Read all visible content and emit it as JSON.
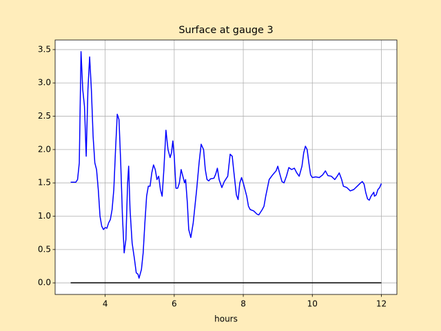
{
  "chart_data": {
    "type": "line",
    "title": "Surface at gauge 3",
    "xlabel": "hours",
    "series": [
      {
        "color": "#0000ff",
        "x": [
          3.0,
          3.15,
          3.2,
          3.25,
          3.3,
          3.35,
          3.4,
          3.45,
          3.5,
          3.55,
          3.6,
          3.65,
          3.7,
          3.75,
          3.8,
          3.85,
          3.9,
          3.95,
          4.0,
          4.05,
          4.1,
          4.15,
          4.2,
          4.25,
          4.3,
          4.35,
          4.4,
          4.45,
          4.5,
          4.55,
          4.6,
          4.65,
          4.68,
          4.72,
          4.78,
          4.85,
          4.9,
          4.95,
          4.98,
          5.05,
          5.1,
          5.15,
          5.2,
          5.25,
          5.3,
          5.35,
          5.4,
          5.45,
          5.5,
          5.55,
          5.6,
          5.65,
          5.7,
          5.76,
          5.82,
          5.88,
          5.92,
          5.96,
          6.0,
          6.05,
          6.1,
          6.15,
          6.2,
          6.25,
          6.3,
          6.33,
          6.38,
          6.42,
          6.48,
          6.55,
          6.65,
          6.72,
          6.78,
          6.85,
          6.9,
          6.95,
          7.0,
          7.05,
          7.15,
          7.2,
          7.25,
          7.3,
          7.38,
          7.45,
          7.55,
          7.62,
          7.68,
          7.72,
          7.8,
          7.85,
          7.9,
          7.95,
          8.0,
          8.05,
          8.1,
          8.15,
          8.2,
          8.3,
          8.4,
          8.45,
          8.55,
          8.6,
          8.65,
          8.75,
          8.85,
          8.95,
          9.0,
          9.05,
          9.12,
          9.18,
          9.25,
          9.32,
          9.4,
          9.48,
          9.55,
          9.62,
          9.7,
          9.75,
          9.8,
          9.85,
          9.9,
          9.95,
          10.0,
          10.1,
          10.2,
          10.3,
          10.38,
          10.45,
          10.55,
          10.65,
          10.72,
          10.78,
          10.85,
          10.9,
          11.0,
          11.1,
          11.2,
          11.3,
          11.4,
          11.45,
          11.5,
          11.55,
          11.6,
          11.65,
          11.7,
          11.78,
          11.8,
          11.85,
          11.9,
          11.95,
          12.0
        ],
        "values": [
          1.51,
          1.51,
          1.55,
          1.8,
          3.47,
          2.9,
          2.65,
          1.9,
          2.9,
          3.39,
          2.9,
          2.2,
          1.8,
          1.7,
          1.4,
          1.0,
          0.85,
          0.8,
          0.83,
          0.82,
          0.9,
          0.95,
          1.1,
          1.4,
          2.0,
          2.53,
          2.45,
          1.8,
          1.0,
          0.45,
          0.65,
          1.5,
          1.75,
          1.1,
          0.6,
          0.35,
          0.15,
          0.13,
          0.07,
          0.2,
          0.45,
          0.9,
          1.3,
          1.45,
          1.45,
          1.65,
          1.77,
          1.7,
          1.55,
          1.6,
          1.4,
          1.3,
          1.7,
          2.29,
          2.0,
          1.88,
          1.95,
          2.13,
          1.9,
          1.42,
          1.42,
          1.5,
          1.7,
          1.6,
          1.5,
          1.55,
          1.2,
          0.8,
          0.68,
          0.9,
          1.4,
          1.8,
          2.08,
          2.0,
          1.7,
          1.55,
          1.53,
          1.56,
          1.57,
          1.63,
          1.72,
          1.55,
          1.43,
          1.52,
          1.6,
          1.93,
          1.9,
          1.7,
          1.32,
          1.25,
          1.5,
          1.58,
          1.5,
          1.4,
          1.3,
          1.15,
          1.1,
          1.08,
          1.03,
          1.02,
          1.1,
          1.15,
          1.3,
          1.55,
          1.62,
          1.68,
          1.75,
          1.65,
          1.52,
          1.5,
          1.6,
          1.73,
          1.7,
          1.72,
          1.65,
          1.6,
          1.75,
          1.95,
          2.05,
          2.0,
          1.8,
          1.62,
          1.58,
          1.59,
          1.58,
          1.62,
          1.68,
          1.61,
          1.6,
          1.55,
          1.6,
          1.65,
          1.55,
          1.45,
          1.43,
          1.38,
          1.4,
          1.45,
          1.5,
          1.52,
          1.48,
          1.35,
          1.26,
          1.24,
          1.3,
          1.36,
          1.3,
          1.32,
          1.4,
          1.43,
          1.49
        ]
      },
      {
        "color": "#000000",
        "x": [
          3,
          12
        ],
        "values": [
          0,
          0
        ]
      }
    ],
    "xlim": [
      2.55,
      12.45
    ],
    "ylim": [
      -0.174,
      3.644
    ],
    "xticks": [
      4,
      6,
      8,
      10,
      12
    ],
    "yticks": [
      {
        "value": 0,
        "label": "0.0"
      },
      {
        "value": 0.5,
        "label": "0.5"
      },
      {
        "value": 1,
        "label": "1.0"
      },
      {
        "value": 1.5,
        "label": "1.5"
      },
      {
        "value": 2,
        "label": "2.0"
      },
      {
        "value": 2.5,
        "label": "2.5"
      },
      {
        "value": 3,
        "label": "3.0"
      },
      {
        "value": 3.5,
        "label": "3.5"
      }
    ],
    "grid": true
  }
}
